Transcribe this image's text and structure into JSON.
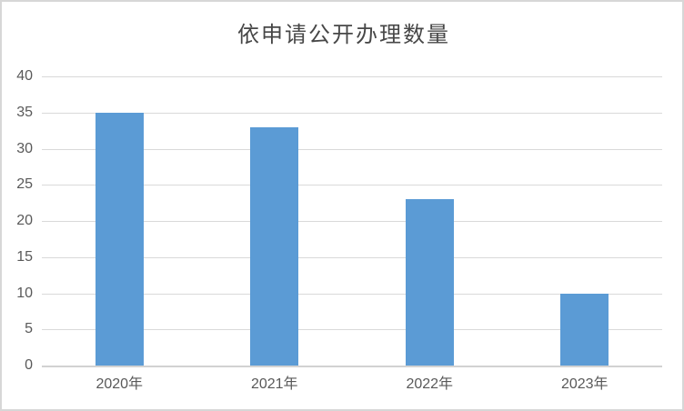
{
  "chart_data": {
    "type": "bar",
    "title": "依申请公开办理数量",
    "categories": [
      "2020年",
      "2021年",
      "2022年",
      "2023年"
    ],
    "values": [
      35,
      33,
      23,
      10
    ],
    "xlabel": "",
    "ylabel": "",
    "ylim": [
      0,
      40
    ],
    "ytick_step": 5,
    "yticks": [
      0,
      5,
      10,
      15,
      20,
      25,
      30,
      35,
      40
    ],
    "grid": true,
    "legend": "none",
    "bar_color": "#5b9bd5",
    "gridline_color": "#d9d9d9",
    "axis_line_color": "#d2d2d2",
    "tick_label_color": "#595959",
    "title_color": "#474747",
    "frame_border_color": "#d7d7d7",
    "background_color": "#ffffff"
  }
}
